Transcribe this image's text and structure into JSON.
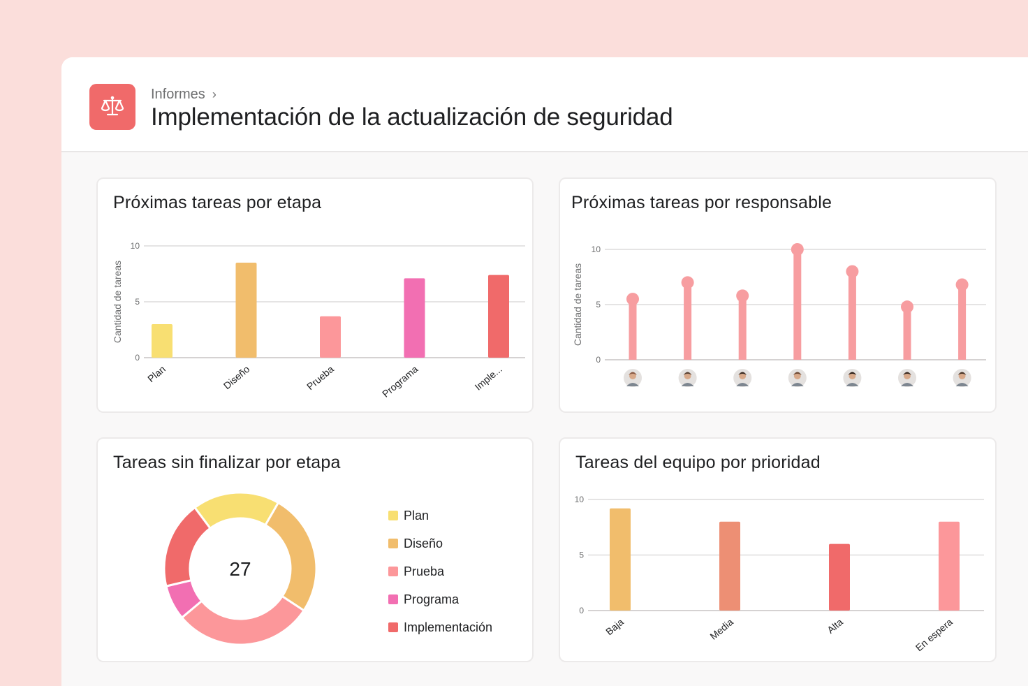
{
  "header": {
    "breadcrumb": "Informes",
    "title": "Implementación de la actualización de seguridad",
    "icon": "scales-icon",
    "icon_bg": "#f06a6a"
  },
  "cards": {
    "tasks_by_stage": {
      "title": "Próximas tareas por etapa"
    },
    "tasks_by_assignee": {
      "title": "Próximas tareas por responsable"
    },
    "unfinished_by_stage": {
      "title": "Tareas sin finalizar por etapa"
    },
    "team_by_priority": {
      "title": "Tareas del equipo por prioridad"
    }
  },
  "chart_data": [
    {
      "id": "tasks_by_stage",
      "type": "bar",
      "title": "Próximas tareas por etapa",
      "ylabel": "Cantidad de tareas",
      "ylim": [
        0,
        10
      ],
      "yticks": [
        0,
        5,
        10
      ],
      "categories": [
        "Plan",
        "Diseño",
        "Prueba",
        "Programa",
        "Imple..."
      ],
      "values": [
        3,
        8.5,
        3.7,
        7.1,
        7.4
      ],
      "colors": [
        "#f8df72",
        "#f1bd6c",
        "#fc979a",
        "#f26fb2",
        "#f06a6a"
      ],
      "grid": true
    },
    {
      "id": "tasks_by_assignee",
      "type": "bar",
      "title": "Próximas tareas por responsable",
      "ylabel": "Cantidad de tareas",
      "ylim": [
        0,
        10
      ],
      "yticks": [
        0,
        5,
        10
      ],
      "categories": [
        "avatar-1",
        "avatar-2",
        "avatar-3",
        "avatar-4",
        "avatar-5",
        "avatar-6",
        "avatar-7"
      ],
      "values": [
        5.5,
        7,
        5.8,
        10,
        8,
        4.8,
        6.8
      ],
      "color": "#f79da0",
      "marker": "lollipop",
      "grid": true
    },
    {
      "id": "unfinished_by_stage",
      "type": "pie",
      "title": "Tareas sin finalizar por etapa",
      "total_label": "27",
      "categories": [
        "Plan",
        "Diseño",
        "Prueba",
        "Programa",
        "Implementación"
      ],
      "values": [
        5,
        7,
        8,
        2,
        5
      ],
      "colors": [
        "#f8df72",
        "#f1bd6c",
        "#fc979a",
        "#f26fb2",
        "#f06a6a"
      ],
      "legend": "right"
    },
    {
      "id": "team_by_priority",
      "type": "bar",
      "title": "Tareas del equipo por prioridad",
      "ylim": [
        0,
        10
      ],
      "yticks": [
        0,
        5,
        10
      ],
      "categories": [
        "Baja",
        "Media",
        "Alta",
        "En espera"
      ],
      "values": [
        9.2,
        8,
        6,
        8
      ],
      "colors": [
        "#f1bd6c",
        "#ed8f74",
        "#f06a6a",
        "#fc979a"
      ],
      "grid": true
    }
  ]
}
